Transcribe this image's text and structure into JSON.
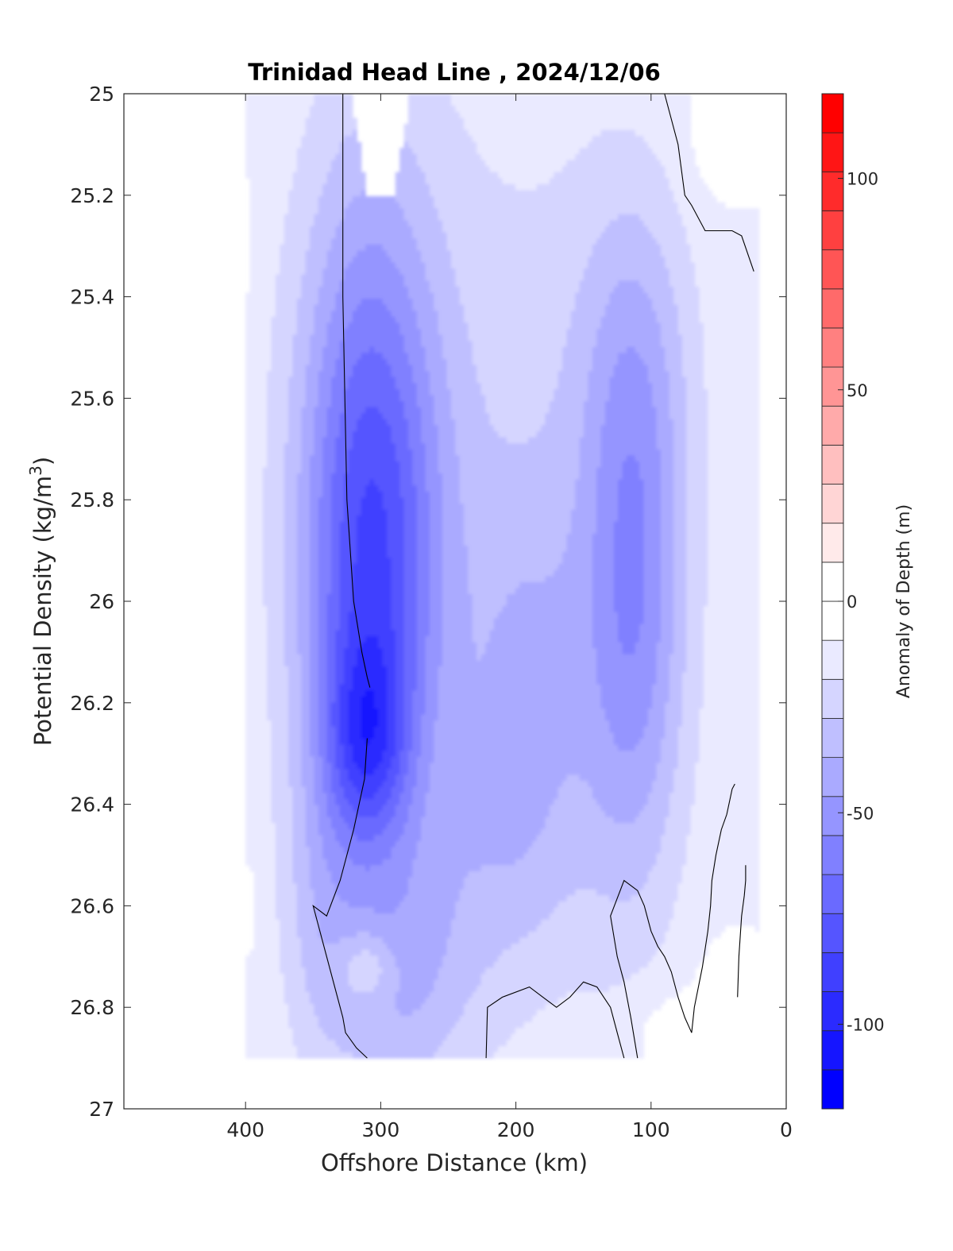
{
  "chart_data": {
    "type": "heatmap",
    "subtype": "filled-contour",
    "title": "Trinidad Head Line , 2024/12/06",
    "xlabel": "Offshore Distance (km)",
    "ylabel": "Potential Density (kg/m",
    "ylabel_superscript": "3",
    "ylabel_suffix": ")",
    "xlim": [
      490,
      0
    ],
    "ylim": [
      27,
      25
    ],
    "x_reversed": true,
    "y_reversed": true,
    "xticks": [
      400,
      300,
      200,
      100,
      0
    ],
    "xtick_labels": [
      "400",
      "300",
      "200",
      "100",
      "0"
    ],
    "yticks": [
      25,
      25.2,
      25.4,
      25.6,
      25.8,
      26,
      26.2,
      26.4,
      26.6,
      26.8,
      27
    ],
    "ytick_labels": [
      "25",
      "25.2",
      "25.4",
      "25.6",
      "25.8",
      "26",
      "26.2",
      "26.4",
      "26.6",
      "26.8",
      "27"
    ],
    "grid": false,
    "colorbar": {
      "label": "Anomaly of Depth (m)",
      "limits": [
        -120,
        120
      ],
      "level_step": 10,
      "ticks": [
        -100,
        -50,
        0,
        50,
        100
      ],
      "tick_labels": [
        "-100",
        "-50",
        "0",
        "50",
        "100"
      ],
      "colors": [
        "#0000ff",
        "#1515ff",
        "#2b2bff",
        "#4040ff",
        "#5555ff",
        "#6a6aff",
        "#8080ff",
        "#9595ff",
        "#aaaaff",
        "#bfbfff",
        "#d5d5ff",
        "#eaeaff",
        "#ffffff",
        "#ffffff",
        "#ffeaea",
        "#ffd5d5",
        "#ffbfbf",
        "#ffaaaa",
        "#ff9595",
        "#ff8080",
        "#ff6a6a",
        "#ff5555",
        "#ff4040",
        "#ff2b2b",
        "#ff1515",
        "#ff0000"
      ],
      "zero_colors": {
        "negative": "#ffffff",
        "positive": "#ffffff"
      }
    },
    "data_extent": {
      "x": [
        400,
        20
      ],
      "y": [
        25,
        26.9
      ]
    },
    "features": [
      {
        "name": "offshore negative core",
        "center_x": 310,
        "center_y": 26.25,
        "min_value": -110,
        "x_range": [
          380,
          230
        ],
        "y_range": [
          25,
          26.9
        ]
      },
      {
        "name": "missing data gap",
        "x_range": [
          320,
          280
        ],
        "y_range": [
          25,
          25.2
        ]
      },
      {
        "name": "nearshore negative core",
        "center_x": 110,
        "center_y": 26.05,
        "min_value": -50,
        "x_range": [
          160,
          80
        ],
        "y_range": [
          25.2,
          26.4
        ]
      },
      {
        "name": "weak negative background",
        "min_value": -20,
        "x_range": [
          240,
          30
        ],
        "y_range": [
          25,
          26.6
        ]
      }
    ],
    "zero_contour_lines": [
      {
        "x": [
          328,
          328,
          325,
          320,
          314,
          310,
          308
        ],
        "y": [
          25.0,
          25.4,
          25.8,
          26.0,
          26.1,
          26.15,
          26.17
        ]
      },
      {
        "x": [
          310,
          312,
          320,
          330,
          340,
          350,
          340,
          330,
          328,
          326,
          318,
          310
        ],
        "y": [
          26.27,
          26.35,
          26.45,
          26.55,
          26.62,
          26.6,
          26.7,
          26.8,
          26.82,
          26.85,
          26.88,
          26.9
        ]
      },
      {
        "x": [
          90,
          80,
          75,
          70,
          60,
          55,
          48,
          40,
          33,
          24
        ],
        "y": [
          25.0,
          25.1,
          25.2,
          25.22,
          25.27,
          25.27,
          25.27,
          25.27,
          25.28,
          25.35
        ]
      },
      {
        "x": [
          222,
          221,
          210,
          190,
          180,
          170,
          160,
          150,
          140,
          130,
          125,
          120
        ],
        "y": [
          26.9,
          26.8,
          26.78,
          26.76,
          26.78,
          26.8,
          26.78,
          26.75,
          26.76,
          26.8,
          26.85,
          26.9
        ]
      },
      {
        "x": [
          110,
          115,
          120,
          125,
          130,
          120,
          110,
          105,
          100,
          95,
          90,
          85,
          80,
          75,
          70
        ],
        "y": [
          26.9,
          26.82,
          26.75,
          26.7,
          26.62,
          26.55,
          26.57,
          26.6,
          26.65,
          26.68,
          26.7,
          26.73,
          26.78,
          26.82,
          26.85
        ]
      },
      {
        "x": [
          70,
          68,
          62,
          58,
          56,
          55,
          52,
          48,
          44,
          40,
          38
        ],
        "y": [
          26.85,
          26.8,
          26.72,
          26.65,
          26.6,
          26.55,
          26.5,
          26.45,
          26.42,
          26.37,
          26.36
        ]
      },
      {
        "x": [
          36,
          35,
          33,
          31,
          30,
          30
        ],
        "y": [
          26.78,
          26.7,
          26.62,
          26.58,
          26.55,
          26.52
        ]
      }
    ]
  }
}
